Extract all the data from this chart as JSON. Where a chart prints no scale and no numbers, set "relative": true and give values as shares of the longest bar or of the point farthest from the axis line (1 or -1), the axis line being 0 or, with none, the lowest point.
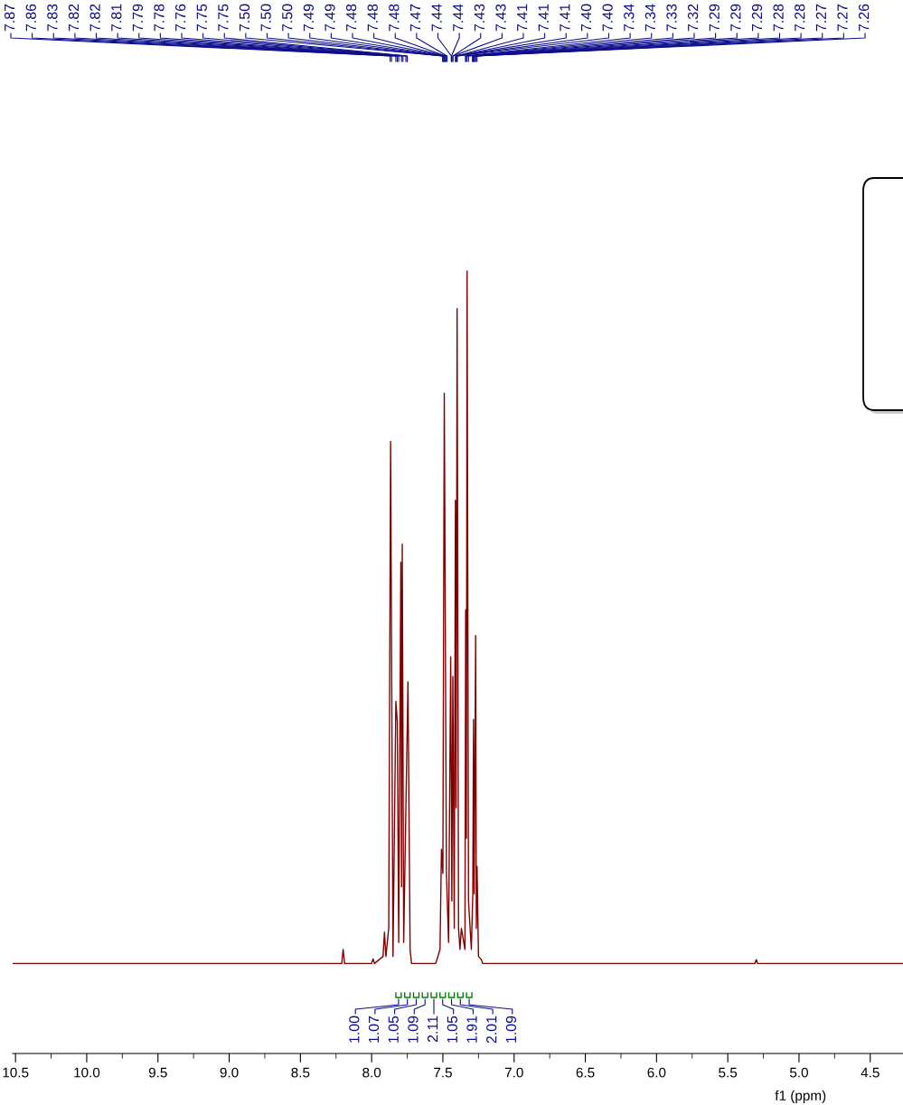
{
  "chart_data": {
    "type": "line",
    "relative": true,
    "xlabel": "f1 (ppm)",
    "xlim": [
      10.52,
      4.27
    ],
    "xticks": [
      10.5,
      {
        "value": 10.0,
        "label": "10.0"
      },
      9.5,
      {
        "value": 9.0,
        "label": "9.0"
      },
      8.5,
      {
        "value": 8.0,
        "label": "8.0"
      },
      7.5,
      {
        "value": 7.0,
        "label": "7.0"
      },
      6.5,
      {
        "value": 6.0,
        "label": "6.0"
      },
      5.5,
      {
        "value": 5.0,
        "label": "5.0"
      },
      4.5
    ],
    "grid": false,
    "legend": false,
    "marker": "none",
    "line_style": "solid",
    "series": [
      {
        "color": "#800000",
        "x": [
          10.52,
          8.21,
          8.2,
          8.19,
          8.0,
          7.99,
          7.98,
          7.92,
          7.91,
          7.9,
          7.88,
          7.867,
          7.85,
          7.83,
          7.82,
          7.81,
          7.795,
          7.79,
          7.785,
          7.775,
          7.745,
          7.73,
          7.72,
          7.55,
          7.52,
          7.51,
          7.5,
          7.49,
          7.475,
          7.46,
          7.445,
          7.437,
          7.43,
          7.42,
          7.412,
          7.407,
          7.4,
          7.39,
          7.38,
          7.37,
          7.345,
          7.34,
          7.335,
          7.33,
          7.32,
          7.3,
          7.29,
          7.285,
          7.28,
          7.27,
          7.265,
          7.26,
          7.25,
          7.23,
          7.22,
          5.31,
          5.3,
          5.29,
          4.27
        ],
        "values": [
          0.115,
          0.115,
          0.133,
          0.115,
          0.115,
          0.121,
          0.115,
          0.124,
          0.155,
          0.124,
          0.16,
          0.782,
          0.124,
          0.45,
          0.425,
          0.142,
          0.628,
          0.213,
          0.651,
          0.142,
          0.475,
          0.133,
          0.115,
          0.115,
          0.133,
          0.261,
          0.23,
          0.844,
          0.23,
          0.142,
          0.507,
          0.195,
          0.482,
          0.16,
          0.707,
          0.314,
          0.952,
          0.16,
          0.133,
          0.16,
          0.133,
          0.567,
          0.275,
          1.0,
          0.195,
          0.133,
          0.204,
          0.427,
          0.204,
          0.534,
          0.16,
          0.239,
          0.124,
          0.12,
          0.115,
          0.115,
          0.12,
          0.115,
          0.115
        ]
      }
    ],
    "annotations": [
      {
        "text": "7.87",
        "x": 7.87
      },
      {
        "text": "7.86",
        "x": 7.86
      },
      {
        "text": "7.83",
        "x": 7.83
      },
      {
        "text": "7.82",
        "x": 7.82
      },
      {
        "text": "7.82",
        "x": 7.82
      },
      {
        "text": "7.81",
        "x": 7.81
      },
      {
        "text": "7.79",
        "x": 7.79
      },
      {
        "text": "7.78",
        "x": 7.78
      },
      {
        "text": "7.76",
        "x": 7.76
      },
      {
        "text": "7.75",
        "x": 7.75
      },
      {
        "text": "7.75",
        "x": 7.75
      },
      {
        "text": "7.50",
        "x": 7.5
      },
      {
        "text": "7.50",
        "x": 7.5
      },
      {
        "text": "7.50",
        "x": 7.5
      },
      {
        "text": "7.49",
        "x": 7.49
      },
      {
        "text": "7.49",
        "x": 7.49
      },
      {
        "text": "7.48",
        "x": 7.48
      },
      {
        "text": "7.48",
        "x": 7.48
      },
      {
        "text": "7.48",
        "x": 7.48
      },
      {
        "text": "7.47",
        "x": 7.47
      },
      {
        "text": "7.44",
        "x": 7.44
      },
      {
        "text": "7.44",
        "x": 7.44
      },
      {
        "text": "7.43",
        "x": 7.43
      },
      {
        "text": "7.43",
        "x": 7.43
      },
      {
        "text": "7.41",
        "x": 7.41
      },
      {
        "text": "7.41",
        "x": 7.41
      },
      {
        "text": "7.41",
        "x": 7.41
      },
      {
        "text": "7.40",
        "x": 7.4
      },
      {
        "text": "7.40",
        "x": 7.4
      },
      {
        "text": "7.34",
        "x": 7.34
      },
      {
        "text": "7.34",
        "x": 7.34
      },
      {
        "text": "7.33",
        "x": 7.33
      },
      {
        "text": "7.32",
        "x": 7.32
      },
      {
        "text": "7.29",
        "x": 7.29
      },
      {
        "text": "7.29",
        "x": 7.29
      },
      {
        "text": "7.29",
        "x": 7.29
      },
      {
        "text": "7.28",
        "x": 7.28
      },
      {
        "text": "7.28",
        "x": 7.28
      },
      {
        "text": "7.27",
        "x": 7.27
      },
      {
        "text": "7.27",
        "x": 7.27
      },
      {
        "text": "7.26",
        "x": 7.26
      },
      "1.00",
      "1.07",
      "1.05",
      "1.09",
      "2.11",
      "1.05",
      "1.91",
      "2.01",
      "1.09"
    ]
  }
}
